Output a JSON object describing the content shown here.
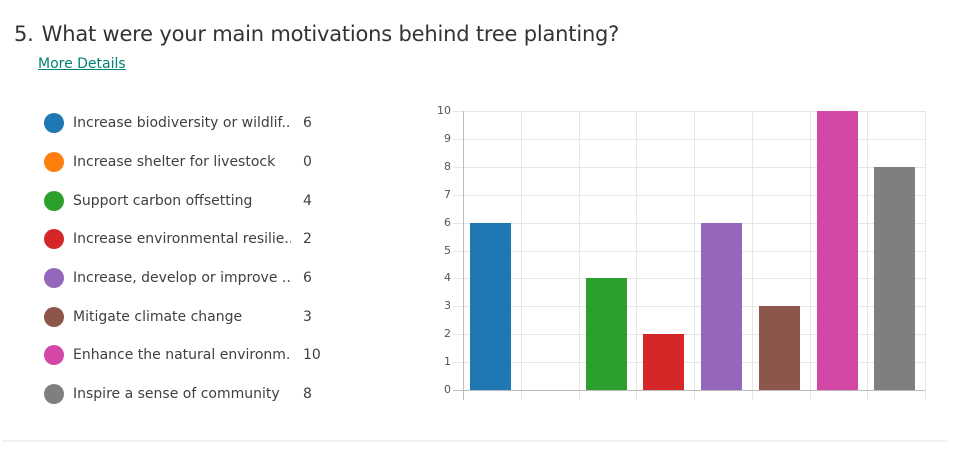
{
  "question": {
    "number": "5.",
    "text": "What were your main motivations behind tree planting?",
    "more_details_label": "More Details"
  },
  "legend": [
    {
      "label": "Increase biodiversity or wildlif...",
      "count": "6",
      "color": "#1f77b4"
    },
    {
      "label": "Increase shelter for livestock",
      "count": "0",
      "color": "#ff7f0e"
    },
    {
      "label": "Support carbon offsetting",
      "count": "4",
      "color": "#2ca02c"
    },
    {
      "label": "Increase environmental resilie...",
      "count": "2",
      "color": "#d62728"
    },
    {
      "label": "Increase, develop or improve ...",
      "count": "6",
      "color": "#9467bd"
    },
    {
      "label": "Mitigate climate change",
      "count": "3",
      "color": "#8c564b"
    },
    {
      "label": "Enhance the natural environm...",
      "count": "10",
      "color": "#d347a7"
    },
    {
      "label": "Inspire a sense of community",
      "count": "8",
      "color": "#7f7f7f"
    }
  ],
  "chart_data": {
    "type": "bar",
    "title": "What were your main motivations behind tree planting?",
    "xlabel": "",
    "ylabel": "",
    "categories": [
      "Increase biodiversity or wildlif...",
      "Increase shelter for livestock",
      "Support carbon offsetting",
      "Increase environmental resilie...",
      "Increase, develop or improve ...",
      "Mitigate climate change",
      "Enhance the natural environm...",
      "Inspire a sense of community"
    ],
    "values": [
      6,
      0,
      4,
      2,
      6,
      3,
      10,
      8
    ],
    "colors": [
      "#1f77b4",
      "#ff7f0e",
      "#2ca02c",
      "#d62728",
      "#9467bd",
      "#8c564b",
      "#d347a7",
      "#7f7f7f"
    ],
    "ylim": [
      0,
      10
    ],
    "yticks": [
      "0",
      "1",
      "2",
      "3",
      "4",
      "5",
      "6",
      "7",
      "8",
      "9",
      "10"
    ],
    "grid": true,
    "legend_position": "left"
  }
}
